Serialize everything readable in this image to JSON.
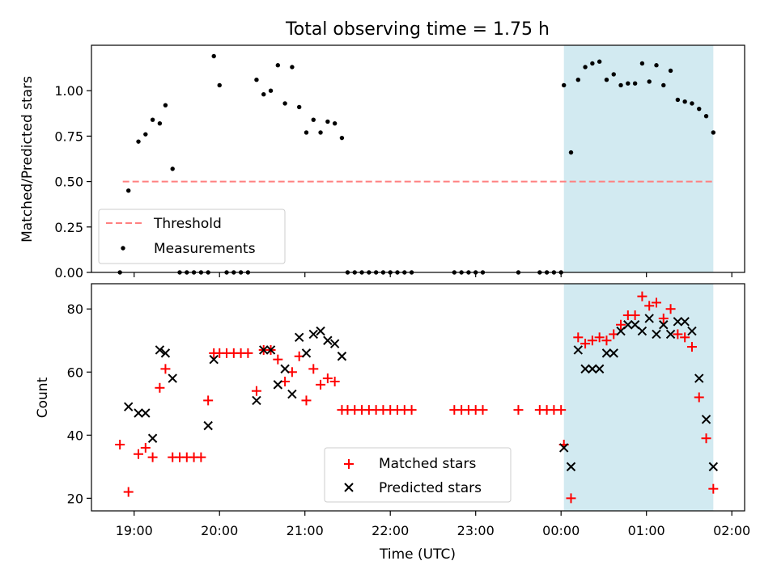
{
  "figure": {
    "title": "Total observing time = 1.75 h",
    "background": "#ffffff"
  },
  "chart_data": [
    {
      "type": "scatter",
      "ylabel": "Matched/Predicted stars",
      "ylim": [
        0,
        1.25
      ],
      "xlim_hours": [
        -5.5,
        2.15
      ],
      "yticks": [
        0.0,
        0.25,
        0.5,
        0.75,
        1.0
      ],
      "ytick_labels": [
        "0.00",
        "0.25",
        "0.50",
        "0.75",
        "1.00"
      ],
      "shaded_region": {
        "from": "00:02",
        "to": "01:47",
        "color": "#add8e6"
      },
      "legend": {
        "placement": "lower-left",
        "entries": [
          "Threshold",
          "Measurements"
        ]
      },
      "threshold": {
        "name": "Threshold",
        "y": 0.5,
        "x_from": "18:52",
        "x_to": "01:47",
        "color": "#ff8080",
        "style": "dashed"
      },
      "series": [
        {
          "name": "Measurements",
          "marker": "dot",
          "color": "#000000",
          "points": [
            [
              "18:50",
              0.0
            ],
            [
              "18:56",
              0.45
            ],
            [
              "19:03",
              0.72
            ],
            [
              "19:08",
              0.76
            ],
            [
              "19:13",
              0.84
            ],
            [
              "19:18",
              0.82
            ],
            [
              "19:22",
              0.92
            ],
            [
              "19:27",
              0.57
            ],
            [
              "19:32",
              0.0
            ],
            [
              "19:37",
              0.0
            ],
            [
              "19:42",
              0.0
            ],
            [
              "19:47",
              0.0
            ],
            [
              "19:52",
              0.0
            ],
            [
              "19:56",
              1.19
            ],
            [
              "20:00",
              1.03
            ],
            [
              "20:05",
              0.0
            ],
            [
              "20:10",
              0.0
            ],
            [
              "20:15",
              0.0
            ],
            [
              "20:20",
              0.0
            ],
            [
              "20:26",
              1.06
            ],
            [
              "20:31",
              0.98
            ],
            [
              "20:36",
              1.0
            ],
            [
              "20:41",
              1.14
            ],
            [
              "20:46",
              0.93
            ],
            [
              "20:51",
              1.13
            ],
            [
              "20:56",
              0.91
            ],
            [
              "21:01",
              0.77
            ],
            [
              "21:06",
              0.84
            ],
            [
              "21:11",
              0.77
            ],
            [
              "21:16",
              0.83
            ],
            [
              "21:21",
              0.82
            ],
            [
              "21:26",
              0.74
            ],
            [
              "21:30",
              0.0
            ],
            [
              "21:35",
              0.0
            ],
            [
              "21:40",
              0.0
            ],
            [
              "21:45",
              0.0
            ],
            [
              "21:50",
              0.0
            ],
            [
              "21:55",
              0.0
            ],
            [
              "22:00",
              0.0
            ],
            [
              "22:05",
              0.0
            ],
            [
              "22:10",
              0.0
            ],
            [
              "22:15",
              0.0
            ],
            [
              "22:45",
              0.0
            ],
            [
              "22:50",
              0.0
            ],
            [
              "22:55",
              0.0
            ],
            [
              "23:00",
              0.0
            ],
            [
              "23:05",
              0.0
            ],
            [
              "23:30",
              0.0
            ],
            [
              "23:45",
              0.0
            ],
            [
              "23:50",
              0.0
            ],
            [
              "23:55",
              0.0
            ],
            [
              "00:00",
              0.0
            ],
            [
              "00:02",
              1.03
            ],
            [
              "00:07",
              0.66
            ],
            [
              "00:12",
              1.06
            ],
            [
              "00:17",
              1.13
            ],
            [
              "00:22",
              1.15
            ],
            [
              "00:27",
              1.16
            ],
            [
              "00:32",
              1.06
            ],
            [
              "00:37",
              1.09
            ],
            [
              "00:42",
              1.03
            ],
            [
              "00:47",
              1.04
            ],
            [
              "00:52",
              1.04
            ],
            [
              "00:57",
              1.15
            ],
            [
              "01:02",
              1.05
            ],
            [
              "01:07",
              1.14
            ],
            [
              "01:12",
              1.03
            ],
            [
              "01:17",
              1.11
            ],
            [
              "01:22",
              0.95
            ],
            [
              "01:27",
              0.94
            ],
            [
              "01:32",
              0.93
            ],
            [
              "01:37",
              0.9
            ],
            [
              "01:42",
              0.86
            ],
            [
              "01:47",
              0.77
            ]
          ]
        }
      ]
    },
    {
      "type": "scatter",
      "xlabel": "Time (UTC)",
      "ylabel": "Count",
      "ylim": [
        16,
        88
      ],
      "xlim_hours": [
        -5.5,
        2.15
      ],
      "yticks": [
        20,
        40,
        60,
        80
      ],
      "ytick_labels": [
        "20",
        "40",
        "60",
        "80"
      ],
      "xticks": [
        "19:00",
        "20:00",
        "21:00",
        "22:00",
        "23:00",
        "00:00",
        "01:00",
        "02:00"
      ],
      "shaded_region": {
        "from": "00:02",
        "to": "01:47",
        "color": "#add8e6"
      },
      "legend": {
        "placement": "lower-center",
        "entries": [
          "Matched stars",
          "Predicted stars"
        ]
      },
      "series": [
        {
          "name": "Matched stars",
          "marker": "plus",
          "color": "#ff0000",
          "points": [
            [
              "18:50",
              37
            ],
            [
              "18:56",
              22
            ],
            [
              "19:03",
              34
            ],
            [
              "19:08",
              36
            ],
            [
              "19:13",
              33
            ],
            [
              "19:18",
              55
            ],
            [
              "19:22",
              61
            ],
            [
              "19:27",
              33
            ],
            [
              "19:32",
              33
            ],
            [
              "19:37",
              33
            ],
            [
              "19:42",
              33
            ],
            [
              "19:47",
              33
            ],
            [
              "19:52",
              51
            ],
            [
              "19:56",
              66
            ],
            [
              "20:00",
              66
            ],
            [
              "20:05",
              66
            ],
            [
              "20:10",
              66
            ],
            [
              "20:15",
              66
            ],
            [
              "20:20",
              66
            ],
            [
              "20:26",
              54
            ],
            [
              "20:31",
              67
            ],
            [
              "20:36",
              67
            ],
            [
              "20:41",
              64
            ],
            [
              "20:46",
              57
            ],
            [
              "20:51",
              60
            ],
            [
              "20:56",
              65
            ],
            [
              "21:01",
              51
            ],
            [
              "21:06",
              61
            ],
            [
              "21:11",
              56
            ],
            [
              "21:16",
              58
            ],
            [
              "21:21",
              57
            ],
            [
              "21:26",
              48
            ],
            [
              "21:30",
              48
            ],
            [
              "21:35",
              48
            ],
            [
              "21:40",
              48
            ],
            [
              "21:45",
              48
            ],
            [
              "21:50",
              48
            ],
            [
              "21:55",
              48
            ],
            [
              "22:00",
              48
            ],
            [
              "22:05",
              48
            ],
            [
              "22:10",
              48
            ],
            [
              "22:15",
              48
            ],
            [
              "22:45",
              48
            ],
            [
              "22:50",
              48
            ],
            [
              "22:55",
              48
            ],
            [
              "23:00",
              48
            ],
            [
              "23:05",
              48
            ],
            [
              "23:30",
              48
            ],
            [
              "23:45",
              48
            ],
            [
              "23:50",
              48
            ],
            [
              "23:55",
              48
            ],
            [
              "00:00",
              48
            ],
            [
              "00:02",
              37
            ],
            [
              "00:07",
              20
            ],
            [
              "00:12",
              71
            ],
            [
              "00:17",
              69
            ],
            [
              "00:22",
              70
            ],
            [
              "00:27",
              71
            ],
            [
              "00:32",
              70
            ],
            [
              "00:37",
              72
            ],
            [
              "00:42",
              75
            ],
            [
              "00:47",
              78
            ],
            [
              "00:52",
              78
            ],
            [
              "00:57",
              84
            ],
            [
              "01:02",
              81
            ],
            [
              "01:07",
              82
            ],
            [
              "01:12",
              77
            ],
            [
              "01:17",
              80
            ],
            [
              "01:22",
              72
            ],
            [
              "01:27",
              71
            ],
            [
              "01:32",
              68
            ],
            [
              "01:37",
              52
            ],
            [
              "01:42",
              39
            ],
            [
              "01:47",
              23
            ]
          ]
        },
        {
          "name": "Predicted stars",
          "marker": "x",
          "color": "#000000",
          "points": [
            [
              "18:56",
              49
            ],
            [
              "19:03",
              47
            ],
            [
              "19:08",
              47
            ],
            [
              "19:13",
              39
            ],
            [
              "19:18",
              67
            ],
            [
              "19:22",
              66
            ],
            [
              "19:27",
              58
            ],
            [
              "19:52",
              43
            ],
            [
              "19:56",
              64
            ],
            [
              "20:26",
              51
            ],
            [
              "20:31",
              67
            ],
            [
              "20:36",
              67
            ],
            [
              "20:41",
              56
            ],
            [
              "20:46",
              61
            ],
            [
              "20:51",
              53
            ],
            [
              "20:56",
              71
            ],
            [
              "21:01",
              66
            ],
            [
              "21:06",
              72
            ],
            [
              "21:11",
              73
            ],
            [
              "21:16",
              70
            ],
            [
              "21:21",
              69
            ],
            [
              "21:26",
              65
            ],
            [
              "00:02",
              36
            ],
            [
              "00:07",
              30
            ],
            [
              "00:12",
              67
            ],
            [
              "00:17",
              61
            ],
            [
              "00:22",
              61
            ],
            [
              "00:27",
              61
            ],
            [
              "00:32",
              66
            ],
            [
              "00:37",
              66
            ],
            [
              "00:42",
              73
            ],
            [
              "00:47",
              75
            ],
            [
              "00:52",
              75
            ],
            [
              "00:57",
              73
            ],
            [
              "01:02",
              77
            ],
            [
              "01:07",
              72
            ],
            [
              "01:12",
              75
            ],
            [
              "01:17",
              72
            ],
            [
              "01:22",
              76
            ],
            [
              "01:27",
              76
            ],
            [
              "01:32",
              73
            ],
            [
              "01:37",
              58
            ],
            [
              "01:42",
              45
            ],
            [
              "01:47",
              30
            ]
          ]
        }
      ]
    }
  ]
}
